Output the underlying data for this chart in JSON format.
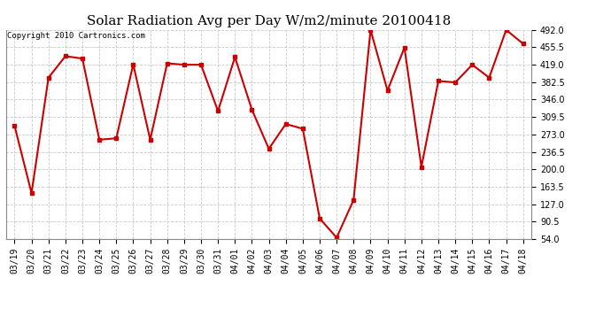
{
  "title": "Solar Radiation Avg per Day W/m2/minute 20100418",
  "copyright": "Copyright 2010 Cartronics.com",
  "dates": [
    "03/19",
    "03/20",
    "03/21",
    "03/22",
    "03/23",
    "03/24",
    "03/25",
    "03/26",
    "03/27",
    "03/28",
    "03/29",
    "03/30",
    "03/31",
    "04/01",
    "04/02",
    "04/03",
    "04/04",
    "04/05",
    "04/06",
    "04/07",
    "04/08",
    "04/09",
    "04/10",
    "04/11",
    "04/12",
    "04/13",
    "04/14",
    "04/15",
    "04/16",
    "04/17",
    "04/18"
  ],
  "values": [
    291,
    150,
    392,
    437,
    432,
    262,
    265,
    420,
    262,
    422,
    419,
    419,
    322,
    435,
    325,
    243,
    295,
    285,
    97,
    57,
    136,
    492,
    365,
    455,
    205,
    385,
    382,
    419,
    392,
    492,
    463
  ],
  "line_color": "#cc0000",
  "marker_color": "#cc0000",
  "bg_color": "#ffffff",
  "plot_bg_color": "#ffffff",
  "grid_color": "#bbbbbb",
  "yticks": [
    54.0,
    90.5,
    127.0,
    163.5,
    200.0,
    236.5,
    273.0,
    309.5,
    346.0,
    382.5,
    419.0,
    455.5,
    492.0
  ],
  "ylim": [
    54.0,
    492.0
  ],
  "title_fontsize": 11,
  "tick_fontsize": 7,
  "copyright_fontsize": 6.5
}
